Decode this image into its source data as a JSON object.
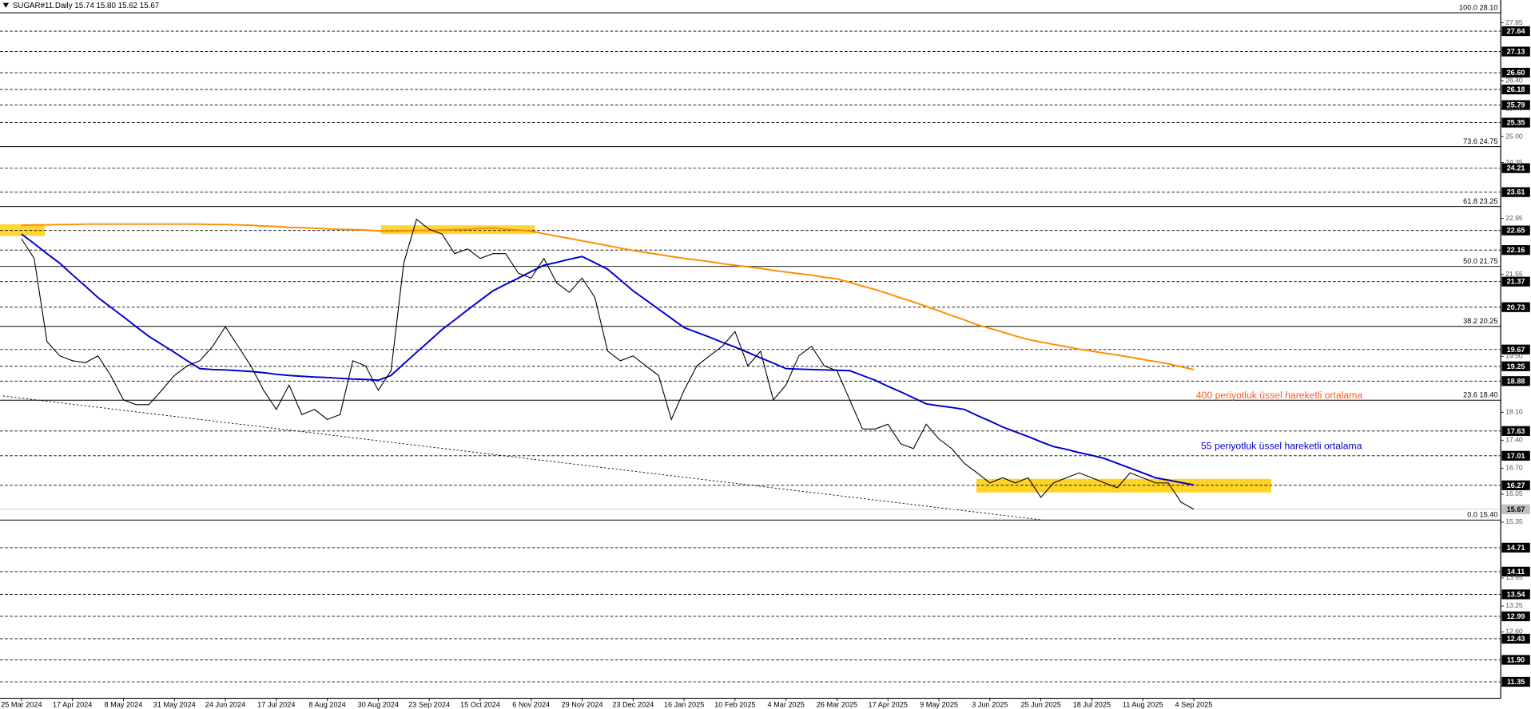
{
  "chart_data": {
    "type": "line",
    "title": "SUGAR#11.Daily  15.74 15.80 15.62 15.67",
    "categories": [
      "25 Mar 2024",
      null,
      null,
      null,
      "17 Apr 2024",
      null,
      null,
      null,
      "8 May 2024",
      null,
      null,
      null,
      "31 May 2024",
      null,
      null,
      null,
      "24 Jun 2024",
      null,
      null,
      null,
      "17 Jul 2024",
      null,
      null,
      null,
      "8 Aug 2024",
      null,
      null,
      null,
      "30 Aug 2024",
      null,
      null,
      null,
      "23 Sep 2024",
      null,
      null,
      null,
      "15 Oct 2024",
      null,
      null,
      null,
      "6 Nov 2024",
      null,
      null,
      null,
      "29 Nov 2024",
      null,
      null,
      null,
      "23 Dec 2024",
      null,
      null,
      null,
      "16 Jan 2025",
      null,
      null,
      null,
      "10 Feb 2025",
      null,
      null,
      null,
      "4 Mar 2025",
      null,
      null,
      null,
      "26 Mar 2025",
      null,
      null,
      null,
      "17 Apr 2025",
      null,
      null,
      null,
      "9 May 2025",
      null,
      null,
      null,
      "3 Jun 2025",
      null,
      null,
      null,
      "25 Jun 2025",
      null,
      null,
      null,
      "18 Jul 2025",
      null,
      null,
      null,
      "11 Aug 2025",
      null,
      null,
      null,
      "4 Sep 2025"
    ],
    "values": [
      22.44,
      21.95,
      19.87,
      19.51,
      19.39,
      19.34,
      19.51,
      19.02,
      18.41,
      18.29,
      18.29,
      18.65,
      19.02,
      19.26,
      19.39,
      19.75,
      20.24,
      19.75,
      19.26,
      18.65,
      18.17,
      18.78,
      18.04,
      18.17,
      17.92,
      18.04,
      19.39,
      19.26,
      18.65,
      19.14,
      21.83,
      22.93,
      22.68,
      22.56,
      22.07,
      22.19,
      21.95,
      22.07,
      22.07,
      21.58,
      21.46,
      21.95,
      21.34,
      21.1,
      21.46,
      20.97,
      19.63,
      19.39,
      19.51,
      19.26,
      19.02,
      17.92,
      18.65,
      19.26,
      19.51,
      19.75,
      20.12,
      19.26,
      19.63,
      18.41,
      18.78,
      19.51,
      19.75,
      19.26,
      19.14,
      18.41,
      17.68,
      17.68,
      17.8,
      17.31,
      17.19,
      17.8,
      17.43,
      17.19,
      16.82,
      16.58,
      16.33,
      16.46,
      16.33,
      16.46,
      15.97,
      16.33,
      16.46,
      16.58,
      16.46,
      16.33,
      16.21,
      16.58,
      16.46,
      16.33,
      16.33,
      15.85,
      15.67
    ],
    "color": "#000000",
    "series": [
      {
        "name": "400 periyotluk üssel hareketli ortalama",
        "color": "#ff8c00",
        "values": [
          22.78,
          22.79,
          22.79,
          22.8,
          22.8,
          22.81,
          22.81,
          22.81,
          22.81,
          22.81,
          22.81,
          22.81,
          22.81,
          22.81,
          22.81,
          22.8,
          22.8,
          22.79,
          22.78,
          22.76,
          22.75,
          22.73,
          22.72,
          22.71,
          22.69,
          22.68,
          22.67,
          22.66,
          22.64,
          22.63,
          22.64,
          22.65,
          22.65,
          22.66,
          22.67,
          22.68,
          22.7,
          22.71,
          22.68,
          22.66,
          22.63,
          22.57,
          22.51,
          22.45,
          22.39,
          22.33,
          22.27,
          22.21,
          22.15,
          22.1,
          22.05,
          22.0,
          21.95,
          21.91,
          21.87,
          21.82,
          21.78,
          21.74,
          21.7,
          21.65,
          21.61,
          21.57,
          21.53,
          21.48,
          21.44,
          21.35,
          21.26,
          21.17,
          21.07,
          20.96,
          20.86,
          20.75,
          20.64,
          20.52,
          20.41,
          20.29,
          20.2,
          20.11,
          20.01,
          19.92,
          19.86,
          19.8,
          19.74,
          19.68,
          19.63,
          19.58,
          19.53,
          19.48,
          19.42,
          19.37,
          19.31,
          19.24,
          19.17
        ]
      },
      {
        "name": "55 periyotluk üssel hareketli ortalama",
        "color": "#0000cd",
        "values": [
          22.56,
          22.32,
          22.07,
          21.83,
          21.54,
          21.26,
          20.97,
          20.73,
          20.49,
          20.24,
          20.0,
          19.8,
          19.6,
          19.39,
          19.19,
          19.17,
          19.16,
          19.14,
          19.12,
          19.09,
          19.05,
          19.02,
          19.0,
          18.98,
          18.97,
          18.95,
          18.93,
          18.92,
          18.9,
          19.02,
          19.31,
          19.6,
          19.88,
          20.17,
          20.41,
          20.66,
          20.9,
          21.14,
          21.3,
          21.46,
          21.62,
          21.78,
          21.85,
          21.93,
          22.0,
          21.84,
          21.68,
          21.41,
          21.14,
          20.91,
          20.68,
          20.45,
          20.22,
          20.1,
          19.98,
          19.85,
          19.73,
          19.6,
          19.46,
          19.33,
          19.19,
          19.18,
          19.17,
          19.16,
          19.15,
          19.14,
          19.02,
          18.9,
          18.75,
          18.61,
          18.46,
          18.31,
          18.26,
          18.22,
          18.17,
          18.02,
          17.88,
          17.73,
          17.61,
          17.49,
          17.36,
          17.24,
          17.17,
          17.09,
          17.02,
          16.94,
          16.82,
          16.7,
          16.58,
          16.46,
          16.4,
          16.34,
          16.28
        ]
      }
    ],
    "ylim": [
      10.89,
      28.42
    ],
    "yticks": [
      27.85,
      {
        "value": 26.4,
        "label": "26.40"
      },
      {
        "value": 25.7,
        "label": "25.70"
      },
      {
        "value": 25,
        "label": "25.00"
      },
      24.35,
      22.95,
      21.55,
      {
        "value": 19.5,
        "label": "19.50"
      },
      {
        "value": 18.1,
        "label": "18.10"
      },
      {
        "value": 17.4,
        "label": "17.40"
      },
      {
        "value": 16.7,
        "label": "16.70"
      },
      16.05,
      15.35,
      13.95,
      13.25,
      {
        "value": 12.6,
        "label": "12.60"
      }
    ],
    "levels": [
      27.64,
      27.13,
      {
        "value": 26.6,
        "label": "26.60"
      },
      26.18,
      25.79,
      25.35,
      24.21,
      23.61,
      22.65,
      22.16,
      21.37,
      20.73,
      19.67,
      19.25,
      18.88,
      17.63,
      17.01,
      16.27,
      15.67,
      14.71,
      14.11,
      13.54,
      12.99,
      12.43,
      {
        "value": 11.9,
        "label": "11.90"
      },
      11.35
    ],
    "fibo": [
      {
        "value": 28.1,
        "label": "100.0 28.10"
      },
      {
        "value": 24.75,
        "label": "73.6 24.75"
      },
      {
        "value": 23.25,
        "label": "61.8 23.25"
      },
      {
        "value": 21.75,
        "label": "50.0 21.75"
      },
      {
        "value": 20.25,
        "label": "38.2 20.25"
      },
      {
        "value": 18.4,
        "label": "23.6 18.40"
      },
      {
        "value": 15.4,
        "label": "0.0 15.40"
      }
    ]
  }
}
